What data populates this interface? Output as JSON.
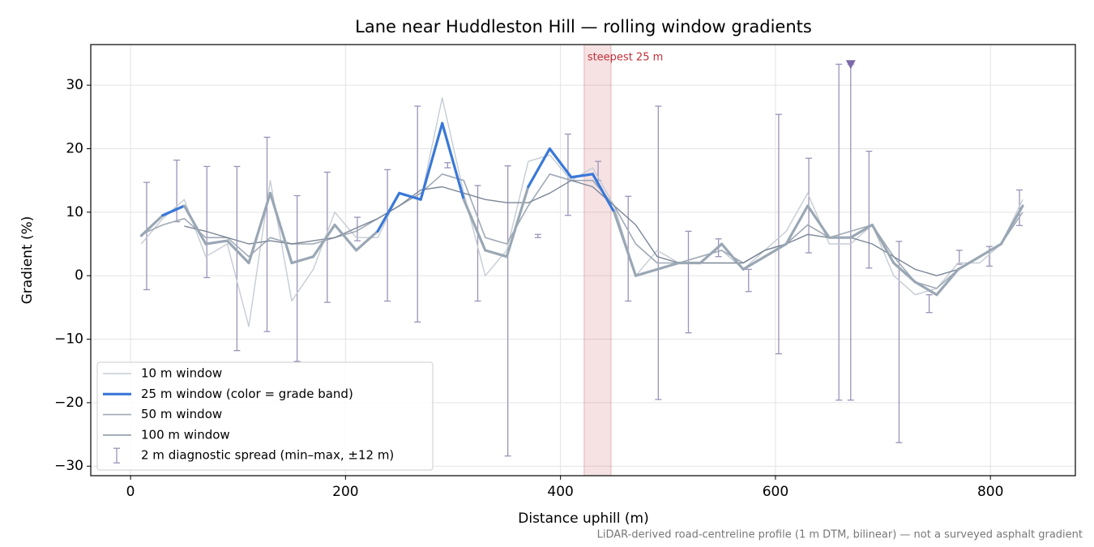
{
  "chart_data": {
    "type": "line",
    "title": "Lane near Huddleston Hill — rolling window gradients",
    "xlabel": "Distance uphill (m)",
    "ylabel": "Gradient (%)",
    "footnote": "LiDAR-derived road-centreline profile (1 m DTM, bilinear) — not a surveyed asphalt gradient",
    "xlim": [
      -37,
      879
    ],
    "ylim": [
      -31.5,
      36.4
    ],
    "xticks": [
      0,
      200,
      400,
      600,
      800
    ],
    "yticks": [
      {
        "value": -30,
        "label": "−30"
      },
      {
        "value": -20,
        "label": "−20"
      },
      {
        "value": -10,
        "label": "−10"
      },
      0,
      10,
      20,
      30
    ],
    "grid": true,
    "legend": "lower left",
    "x": [
      10,
      30,
      50,
      70,
      90,
      110,
      130,
      150,
      170,
      190,
      210,
      230,
      250,
      270,
      290,
      310,
      330,
      350,
      370,
      390,
      410,
      430,
      450,
      470,
      490,
      510,
      530,
      550,
      570,
      590,
      610,
      630,
      650,
      670,
      690,
      710,
      730,
      750,
      770,
      790,
      810,
      830
    ],
    "series": [
      {
        "name": "10 m window",
        "color": "#c5ccd4",
        "width": 1.4,
        "values": [
          5,
          9,
          12,
          3,
          5,
          -8,
          15,
          -4,
          1,
          10,
          6,
          6,
          13,
          12,
          28,
          13,
          0,
          4,
          18,
          19,
          15,
          17,
          11,
          0,
          4,
          2,
          3,
          4,
          1,
          4,
          7,
          13,
          5,
          5,
          8,
          0,
          -3,
          -2,
          2,
          2,
          5,
          12
        ]
      },
      {
        "name": "25 m window (color = grade band)",
        "color": "#3a78d8",
        "width": 3.2,
        "banded": true,
        "values": [
          6.3,
          9.5,
          11,
          5,
          5.5,
          2,
          13,
          2,
          3,
          8,
          4,
          7,
          13,
          12,
          24,
          12,
          4,
          3,
          14,
          20,
          15.5,
          16,
          10,
          0,
          1,
          2,
          2,
          5,
          1,
          3,
          5,
          11,
          6,
          6,
          8,
          2,
          -1,
          -3,
          1,
          3,
          5,
          11
        ]
      },
      {
        "name": "50 m window",
        "color": "#a0aab6",
        "width": 1.6,
        "values": [
          6.5,
          8,
          9,
          6,
          6,
          3,
          6,
          5,
          5,
          6,
          7,
          9,
          11,
          13,
          16,
          15,
          6,
          5,
          11,
          16,
          15,
          15,
          11,
          5,
          2,
          2,
          3,
          4,
          2,
          4,
          5,
          8,
          6,
          7,
          8,
          3,
          -1,
          -2,
          1,
          3,
          5,
          10
        ]
      },
      {
        "name": "100 m window",
        "color": "#7b8796",
        "width": 1.4,
        "values": [
          null,
          null,
          7.8,
          7,
          6,
          5,
          5.5,
          5,
          5.5,
          6,
          7.5,
          9,
          11,
          13.5,
          14,
          13,
          12,
          11.5,
          11.5,
          13,
          15,
          14,
          11,
          8,
          3,
          2,
          2,
          2,
          2,
          4,
          5,
          6.5,
          6,
          6,
          5,
          3,
          1,
          0,
          1,
          3,
          null,
          null
        ]
      }
    ],
    "band_thresholds": [
      10,
      20
    ],
    "band_colors": [
      "#9aa7b4",
      "#3a78d8",
      "#d9870f"
    ],
    "errorbars": {
      "name": "2 m diagnostic spread (min–max, ±12 m)",
      "color": "#9b93b8",
      "x": [
        15,
        43,
        71,
        99,
        127,
        155,
        183,
        211,
        239,
        267,
        295,
        323,
        351,
        379,
        407,
        435,
        463,
        491,
        519,
        547,
        575,
        603,
        631,
        659,
        670,
        687,
        715,
        743,
        771,
        799,
        827
      ],
      "low": [
        -2.2,
        8.5,
        -0.3,
        -11.8,
        -8.8,
        -13.5,
        -4.2,
        5.5,
        -4.0,
        -7.3,
        17.0,
        -4.0,
        -28.4,
        6.0,
        9.5,
        15.0,
        -4.0,
        -19.5,
        -9.0,
        3.0,
        -2.5,
        -12.3,
        3.6,
        -19.6,
        -19.6,
        1.2,
        -26.3,
        -5.8,
        1.8,
        1.5,
        7.9
      ],
      "high": [
        14.7,
        18.2,
        17.2,
        17.2,
        21.8,
        12.6,
        16.3,
        9.2,
        16.7,
        26.7,
        17.8,
        14.2,
        17.3,
        6.5,
        22.3,
        18.0,
        12.5,
        26.7,
        7.0,
        5.8,
        1.0,
        25.4,
        18.5,
        33.3,
        33.3,
        19.6,
        5.4,
        -3.0,
        4.0,
        4.6,
        13.5
      ]
    },
    "peak_marker": {
      "x": 670,
      "y": 33.3,
      "color": "#7d6aa8"
    },
    "span": {
      "x": [
        422,
        447
      ],
      "label": "steepest 25 m",
      "color": "#c0303a"
    }
  }
}
